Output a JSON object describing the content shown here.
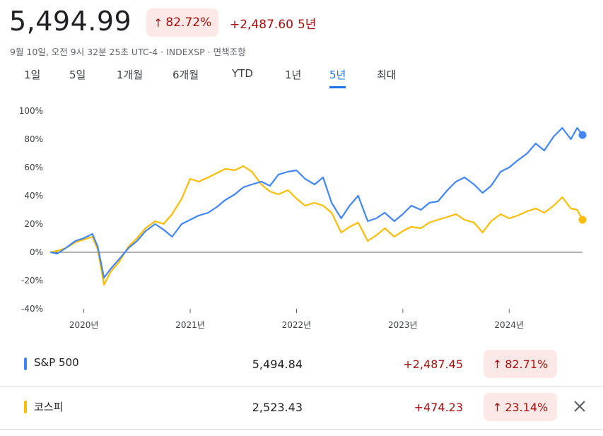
{
  "header": {
    "price": "5,494.99",
    "percent": "82.72%",
    "change": "+2,487.60",
    "period": "5년",
    "meta": "9월 10일, 오전 9시 32분 25초 UTC-4 · INDEXSP · 면책조항"
  },
  "tabs": [
    {
      "label": "1일"
    },
    {
      "label": "5일"
    },
    {
      "label": "1개월"
    },
    {
      "label": "6개월"
    },
    {
      "label": "YTD"
    },
    {
      "label": "1년"
    },
    {
      "label": "5년",
      "active": true
    },
    {
      "label": "최대"
    }
  ],
  "legend": [
    {
      "name": "S&P 500",
      "value": "5,494.84",
      "change": "+2,487.45",
      "percent": "82.71%",
      "color": "#4285f4"
    },
    {
      "name": "코스피",
      "value": "2,523.43",
      "change": "+474.23",
      "percent": "23.14%",
      "color": "#fbbc04",
      "removable": true
    }
  ],
  "colors": {
    "up_text": "#a50e0e",
    "up_bg": "#fce8e6",
    "accent": "#1a73e8"
  },
  "chart_data": {
    "type": "line",
    "y_tick_labels": [
      "100%",
      "80%",
      "60%",
      "40%",
      "20%",
      "0%",
      "-20%",
      "-40%"
    ],
    "x_tick_labels": [
      "2020년",
      "2021년",
      "2022년",
      "2023년",
      "2024년"
    ],
    "ylim": [
      -40,
      100
    ],
    "xlim": [
      2019.69,
      2024.69
    ],
    "series": [
      {
        "name": "S&P 500",
        "color": "#4285f4",
        "points": [
          [
            2019.69,
            0
          ],
          [
            2019.75,
            -1
          ],
          [
            2019.83,
            3
          ],
          [
            2019.92,
            8
          ],
          [
            2020.0,
            10
          ],
          [
            2020.08,
            13
          ],
          [
            2020.13,
            4
          ],
          [
            2020.19,
            -18
          ],
          [
            2020.25,
            -12
          ],
          [
            2020.33,
            -5
          ],
          [
            2020.42,
            3
          ],
          [
            2020.5,
            8
          ],
          [
            2020.58,
            15
          ],
          [
            2020.67,
            20
          ],
          [
            2020.75,
            16
          ],
          [
            2020.83,
            11
          ],
          [
            2020.92,
            20
          ],
          [
            2021.0,
            23
          ],
          [
            2021.08,
            26
          ],
          [
            2021.17,
            28
          ],
          [
            2021.25,
            32
          ],
          [
            2021.33,
            37
          ],
          [
            2021.42,
            41
          ],
          [
            2021.5,
            46
          ],
          [
            2021.58,
            48
          ],
          [
            2021.67,
            50
          ],
          [
            2021.75,
            47
          ],
          [
            2021.83,
            55
          ],
          [
            2021.92,
            57
          ],
          [
            2022.0,
            58
          ],
          [
            2022.08,
            52
          ],
          [
            2022.17,
            48
          ],
          [
            2022.25,
            53
          ],
          [
            2022.33,
            35
          ],
          [
            2022.42,
            24
          ],
          [
            2022.5,
            33
          ],
          [
            2022.58,
            40
          ],
          [
            2022.67,
            22
          ],
          [
            2022.75,
            24
          ],
          [
            2022.83,
            28
          ],
          [
            2022.92,
            22
          ],
          [
            2023.0,
            27
          ],
          [
            2023.08,
            33
          ],
          [
            2023.17,
            30
          ],
          [
            2023.25,
            35
          ],
          [
            2023.33,
            36
          ],
          [
            2023.42,
            44
          ],
          [
            2023.5,
            50
          ],
          [
            2023.58,
            53
          ],
          [
            2023.67,
            48
          ],
          [
            2023.75,
            42
          ],
          [
            2023.83,
            47
          ],
          [
            2023.92,
            57
          ],
          [
            2024.0,
            60
          ],
          [
            2024.08,
            65
          ],
          [
            2024.17,
            70
          ],
          [
            2024.25,
            77
          ],
          [
            2024.33,
            72
          ],
          [
            2024.42,
            82
          ],
          [
            2024.5,
            88
          ],
          [
            2024.58,
            80
          ],
          [
            2024.64,
            88
          ],
          [
            2024.69,
            83
          ]
        ]
      },
      {
        "name": "코스피",
        "color": "#fbbc04",
        "points": [
          [
            2019.69,
            0
          ],
          [
            2019.75,
            1
          ],
          [
            2019.83,
            3
          ],
          [
            2019.92,
            7
          ],
          [
            2020.0,
            9
          ],
          [
            2020.08,
            11
          ],
          [
            2020.13,
            2
          ],
          [
            2020.19,
            -23
          ],
          [
            2020.25,
            -14
          ],
          [
            2020.33,
            -7
          ],
          [
            2020.42,
            4
          ],
          [
            2020.5,
            10
          ],
          [
            2020.58,
            17
          ],
          [
            2020.67,
            22
          ],
          [
            2020.75,
            20
          ],
          [
            2020.83,
            27
          ],
          [
            2020.92,
            38
          ],
          [
            2021.0,
            52
          ],
          [
            2021.08,
            50
          ],
          [
            2021.17,
            53
          ],
          [
            2021.25,
            56
          ],
          [
            2021.33,
            59
          ],
          [
            2021.42,
            58
          ],
          [
            2021.5,
            61
          ],
          [
            2021.58,
            57
          ],
          [
            2021.67,
            48
          ],
          [
            2021.75,
            43
          ],
          [
            2021.83,
            41
          ],
          [
            2021.92,
            44
          ],
          [
            2022.0,
            38
          ],
          [
            2022.08,
            33
          ],
          [
            2022.17,
            35
          ],
          [
            2022.25,
            33
          ],
          [
            2022.33,
            28
          ],
          [
            2022.42,
            14
          ],
          [
            2022.5,
            18
          ],
          [
            2022.58,
            21
          ],
          [
            2022.67,
            8
          ],
          [
            2022.75,
            12
          ],
          [
            2022.83,
            17
          ],
          [
            2022.92,
            11
          ],
          [
            2023.0,
            15
          ],
          [
            2023.08,
            18
          ],
          [
            2023.17,
            17
          ],
          [
            2023.25,
            21
          ],
          [
            2023.33,
            23
          ],
          [
            2023.42,
            25
          ],
          [
            2023.5,
            27
          ],
          [
            2023.58,
            23
          ],
          [
            2023.67,
            21
          ],
          [
            2023.75,
            14
          ],
          [
            2023.83,
            22
          ],
          [
            2023.92,
            27
          ],
          [
            2024.0,
            24
          ],
          [
            2024.08,
            26
          ],
          [
            2024.17,
            29
          ],
          [
            2024.25,
            31
          ],
          [
            2024.33,
            28
          ],
          [
            2024.42,
            33
          ],
          [
            2024.5,
            39
          ],
          [
            2024.58,
            31
          ],
          [
            2024.64,
            30
          ],
          [
            2024.69,
            23
          ]
        ]
      }
    ]
  }
}
